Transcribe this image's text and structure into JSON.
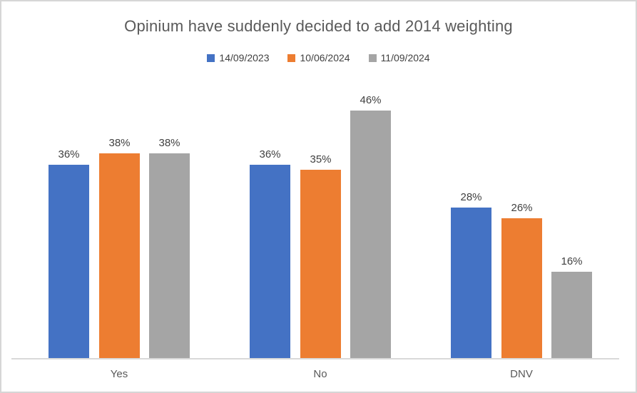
{
  "window": {
    "background_color": "#FFFFFF",
    "border_color": "#D6D6D6"
  },
  "chart_data": {
    "type": "bar",
    "title": "Opinium have suddenly decided to add 2014 weighting",
    "categories": [
      "Yes",
      "No",
      "DNV"
    ],
    "series": [
      {
        "name": "14/09/2023",
        "color": "#4472C4",
        "values": [
          36,
          36,
          28
        ]
      },
      {
        "name": "10/06/2024",
        "color": "#ED7D31",
        "values": [
          38,
          35,
          26
        ]
      },
      {
        "name": "11/09/2024",
        "color": "#A5A5A5",
        "values": [
          38,
          46,
          16
        ]
      }
    ],
    "data_label_format": "{v}%",
    "data_labels_visible": true,
    "xlabel": "",
    "ylabel": "",
    "ylim": [
      0,
      50
    ],
    "grid": false,
    "y_axis_visible": false,
    "legend_position": "top",
    "axis_line_color": "#D9D9D9",
    "title_color": "#595959",
    "data_label_color": "#404040",
    "legend_text_color": "#404040",
    "category_label_color": "#595959"
  }
}
